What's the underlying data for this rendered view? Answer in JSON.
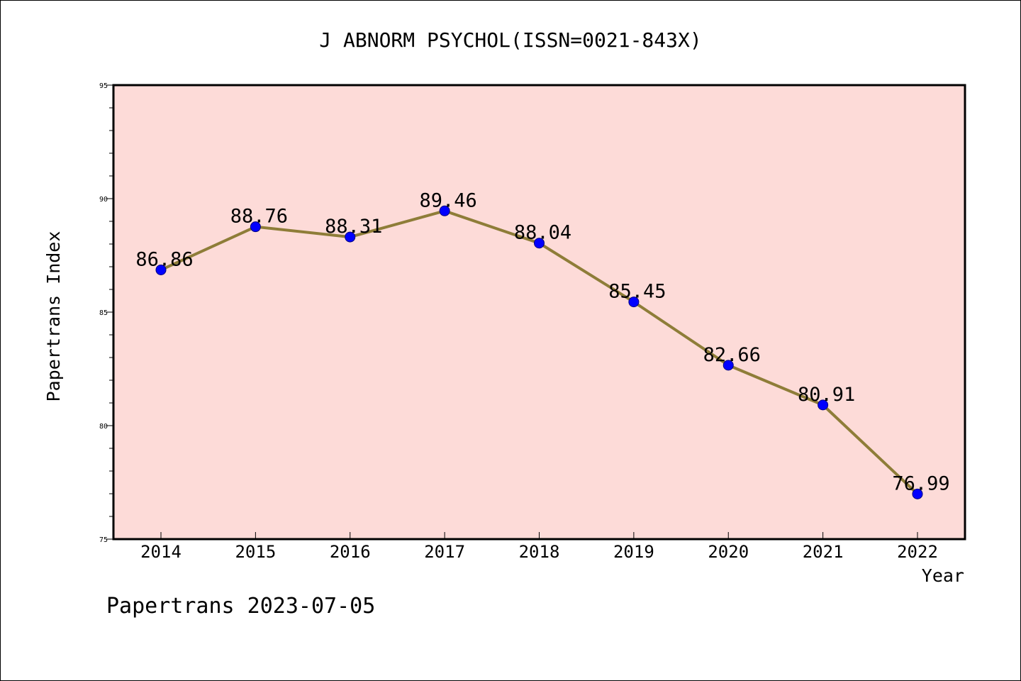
{
  "chart_data": {
    "type": "line",
    "title": "J ABNORM PSYCHOL(ISSN=0021-843X)",
    "xlabel": "Year",
    "ylabel": "Papertrans Index",
    "footer": "Papertrans 2023-07-05",
    "categories": [
      "2014",
      "2015",
      "2016",
      "2017",
      "2018",
      "2019",
      "2020",
      "2021",
      "2022"
    ],
    "series": [
      {
        "values": [
          86.86,
          88.76,
          88.31,
          89.46,
          88.04,
          85.45,
          82.66,
          80.91,
          76.99
        ],
        "data_labels": [
          "86.86",
          "88.76",
          "88.31",
          "89.46",
          "88.04",
          "85.45",
          "82.66",
          "80.91",
          "76.99"
        ]
      }
    ],
    "ylim": [
      75,
      95
    ],
    "yticks": [
      "75",
      "80",
      "85",
      "90",
      "95"
    ],
    "grid": false,
    "legend": "none",
    "colors": {
      "plot_background": "#fddbd8",
      "line": "#8e7d38",
      "marker": "#0000ff",
      "marker_edge": "#000080"
    }
  }
}
